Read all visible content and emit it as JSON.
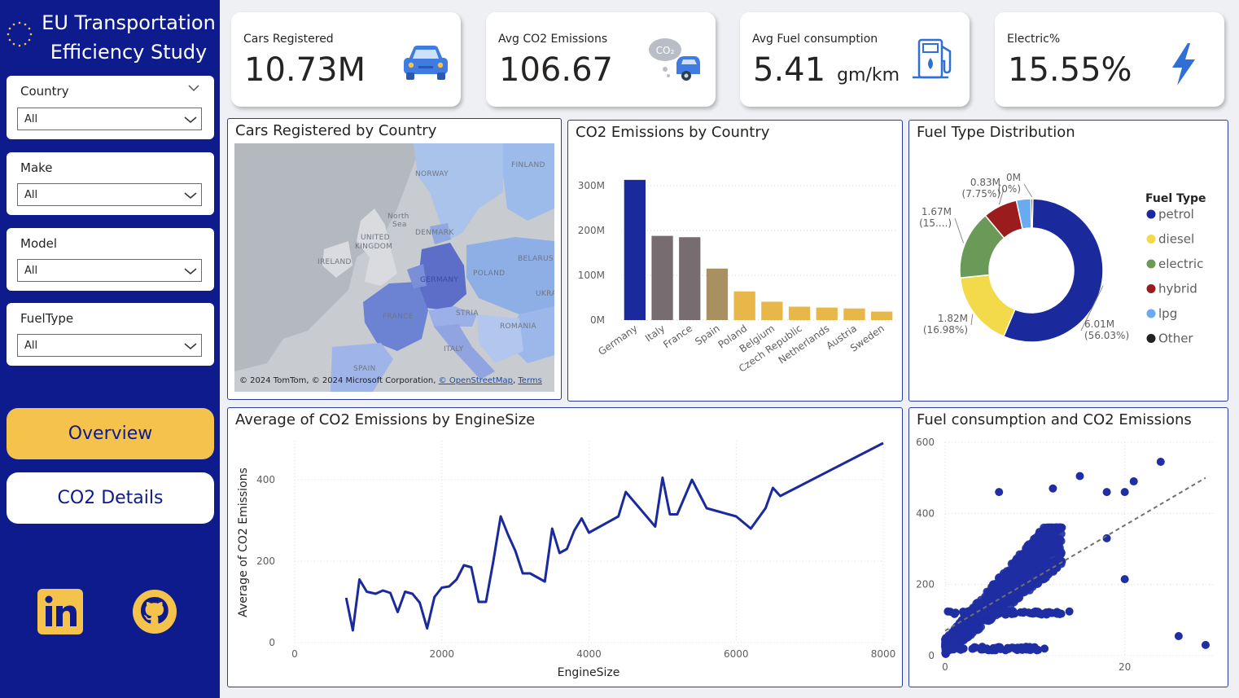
{
  "app": {
    "title_line1": "EU Transportation",
    "title_line2": "Efficiency Study"
  },
  "filters": [
    {
      "label": "Country",
      "value": "All"
    },
    {
      "label": "Make",
      "value": "All"
    },
    {
      "label": "Model",
      "value": "All"
    },
    {
      "label": "FuelType",
      "value": "All"
    }
  ],
  "nav": {
    "overview": "Overview",
    "co2_details": "CO2 Details"
  },
  "kpis": [
    {
      "label": "Cars Registered",
      "value": "10.73M",
      "unit": ""
    },
    {
      "label": "Avg CO2 Emissions",
      "value": "106.67",
      "unit": ""
    },
    {
      "label": "Avg Fuel consumption",
      "value": "5.41",
      "unit": "gm/km"
    },
    {
      "label": "Electric%",
      "value": "15.55%",
      "unit": ""
    }
  ],
  "icons": {
    "kpi": [
      "car-icon",
      "co2-car-icon",
      "fuel-pump-icon",
      "lightning-icon"
    ],
    "social": [
      "linkedin-icon",
      "github-icon"
    ]
  },
  "colors": {
    "navy": "#0d1b8c",
    "accent_yellow": "#f5c24b",
    "bar_gray": "#776c70",
    "bar_tan": "#a89060",
    "bar_gold": "#e8b74a"
  },
  "map": {
    "title": "Cars Registered by Country",
    "labels": {
      "norway": "NORWAY",
      "finland": "FINLAND",
      "north_sea_1": "North",
      "north_sea_2": "Sea",
      "denmark": "DENMARK",
      "uk_1": "UNITED",
      "uk_2": "KINGDOM",
      "ireland": "IRELAND",
      "germany": "GERMANY",
      "poland": "POLAND",
      "belarus": "BELARUS",
      "ukraine": "UKRA",
      "france": "FRANCE",
      "austria": "STRIA",
      "romania": "ROMANIA",
      "italy": "ITALY",
      "spain": "SPAIN"
    },
    "attribution": "© 2024 TomTom, © 2024 Microsoft Corporation,",
    "osm_link": "© OpenStreetMap",
    "terms_link": "Terms"
  },
  "co2_by_country": {
    "title": "CO2 Emissions by Country",
    "chart_data": {
      "type": "bar",
      "categories": [
        "Germany",
        "Italy",
        "France",
        "Spain",
        "Poland",
        "Belgium",
        "Czech Republic",
        "Netherlands",
        "Austria",
        "Sweden"
      ],
      "values": [
        313,
        188,
        185,
        115,
        64,
        41,
        30,
        28,
        26,
        19
      ],
      "unit": "M",
      "yticks": [
        "0M",
        "100M",
        "200M",
        "300M"
      ],
      "ylim": [
        0,
        340
      ],
      "colors": [
        "#1a2a9c",
        "#776c70",
        "#776c70",
        "#a89060",
        "#e8b74a",
        "#e8b74a",
        "#e8b74a",
        "#e8b74a",
        "#e8b74a",
        "#e8b74a"
      ],
      "grid": true
    }
  },
  "fuel_type": {
    "title": "Fuel Type Distribution",
    "chart_data": {
      "type": "pie",
      "legend_title": "Fuel Type",
      "legend_position": "right",
      "slices": [
        {
          "name": "petrol",
          "value": 56.03,
          "color": "#1a2a9c",
          "label1": "6.01M",
          "label2": "(56.03%)"
        },
        {
          "name": "diesel",
          "value": 16.98,
          "color": "#f2da4a",
          "label1": "1.82M",
          "label2": "(16.98%)"
        },
        {
          "name": "electric",
          "value": 15.55,
          "color": "#6b9a58",
          "label1": "1.67M",
          "label2": "(15....)"
        },
        {
          "name": "hybrid",
          "value": 7.75,
          "color": "#9b1c1c",
          "label1": "0.83M",
          "label2": "(7.75%)"
        },
        {
          "name": "lpg",
          "value": 3.3,
          "color": "#6aaaf0",
          "label1": "",
          "label2": ""
        },
        {
          "name": "Other",
          "value": 0.4,
          "color": "#222222",
          "label1": "0M",
          "label2": "(0%)"
        }
      ]
    }
  },
  "engine_size": {
    "title": "Average of CO2 Emissions by EngineSize",
    "chart_data": {
      "type": "line",
      "xlabel": "EngineSize",
      "ylabel": "Average of CO2 Emissions",
      "xlim": [
        0,
        8000
      ],
      "ylim": [
        0,
        480
      ],
      "xticks": [
        0,
        2000,
        4000,
        6000,
        8000
      ],
      "yticks": [
        0,
        200,
        400
      ],
      "grid": true,
      "series": [
        {
          "x": [
            700,
            790,
            880,
            980,
            1100,
            1200,
            1300,
            1400,
            1500,
            1600,
            1700,
            1800,
            1900,
            2000,
            2100,
            2200,
            2300,
            2400,
            2500,
            2600,
            2700,
            2800,
            2900,
            3000,
            3100,
            3200,
            3300,
            3400,
            3500,
            3600,
            3700,
            3800,
            3900,
            4000,
            4400,
            4500,
            4900,
            5000,
            5100,
            5200,
            5400,
            5600,
            5700,
            6000,
            6200,
            6400,
            6500,
            6600,
            8000
          ],
          "y": [
            110,
            30,
            155,
            125,
            120,
            128,
            122,
            75,
            125,
            120,
            98,
            35,
            112,
            135,
            138,
            155,
            190,
            185,
            100,
            100,
            200,
            310,
            265,
            225,
            170,
            170,
            160,
            150,
            280,
            220,
            230,
            275,
            305,
            270,
            310,
            370,
            285,
            405,
            315,
            315,
            400,
            330,
            325,
            310,
            280,
            330,
            380,
            360,
            490
          ]
        }
      ]
    }
  },
  "fuel_vs_co2": {
    "title": "Fuel consumption and CO2 Emissions",
    "chart_data": {
      "type": "scatter",
      "xlim": [
        0,
        30
      ],
      "ylim": [
        0,
        600
      ],
      "xticks": [
        0,
        20
      ],
      "yticks": [
        0,
        200,
        400,
        600
      ],
      "trendline": {
        "from": [
          0,
          70
        ],
        "to": [
          29,
          500
        ]
      },
      "outliers": [
        [
          6,
          460
        ],
        [
          12,
          470
        ],
        [
          15,
          505
        ],
        [
          18,
          460
        ],
        [
          20,
          460
        ],
        [
          21,
          490
        ],
        [
          24,
          545
        ],
        [
          18,
          330
        ],
        [
          20,
          215
        ],
        [
          26,
          55
        ],
        [
          29,
          30
        ],
        [
          13,
          265
        ],
        [
          11,
          215
        ]
      ]
    }
  }
}
